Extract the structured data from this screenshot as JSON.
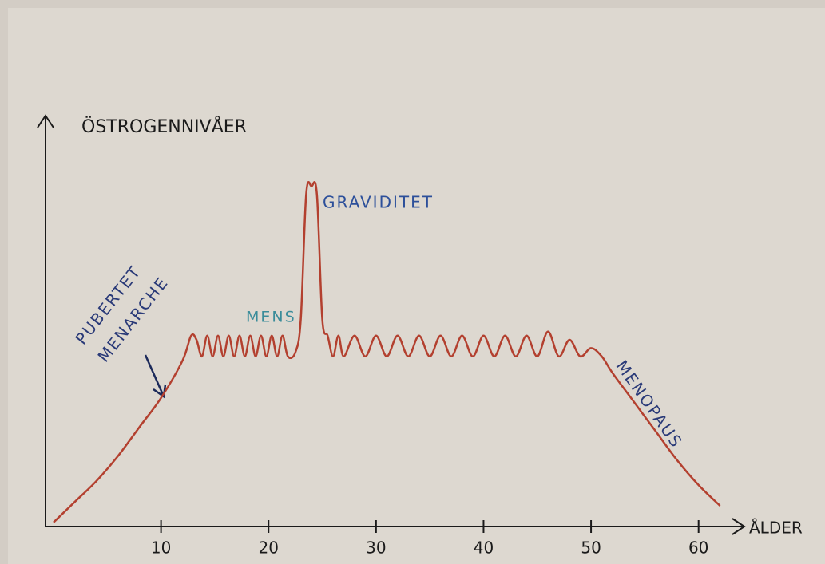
{
  "chart_data": {
    "type": "line",
    "y_label": "ÖSTROGENNIVÅER",
    "x_label": "ÅLDER",
    "annotations": [
      "PUBERTET",
      "MENARCHE",
      "MENS",
      "GRAVIDITET",
      "MENOPAUS"
    ],
    "xlim": [
      0,
      65
    ],
    "ylim": [
      0,
      100
    ],
    "xticks": [
      10,
      20,
      30,
      40,
      50,
      60
    ],
    "series": [
      {
        "color": "#b3402f",
        "x": [
          0,
          2,
          4,
          6,
          8,
          10,
          12,
          12.8,
          13.3,
          13.8,
          14.3,
          14.8,
          15.3,
          15.8,
          16.3,
          16.8,
          17.3,
          17.8,
          18.3,
          18.8,
          19.3,
          19.8,
          20.3,
          20.8,
          21.3,
          21.8,
          22.5,
          23,
          23.5,
          24,
          24.5,
          25,
          25.5,
          26,
          26.5,
          27,
          28,
          29,
          30,
          31,
          32,
          33,
          34,
          35,
          36,
          37,
          38,
          39,
          40,
          41,
          42,
          43,
          44,
          45,
          46,
          47,
          48,
          49,
          50,
          51,
          52,
          54,
          56,
          58,
          60,
          62
        ],
        "values": [
          1,
          6,
          11,
          17,
          24,
          31,
          40,
          46,
          45,
          41,
          46,
          41,
          46,
          41,
          46,
          41,
          46,
          41,
          46,
          41,
          46,
          41,
          46,
          41,
          46,
          41,
          42,
          50,
          80,
          82,
          80,
          50,
          46,
          41,
          46,
          41,
          46,
          41,
          46,
          41,
          46,
          41,
          46,
          41,
          46,
          41,
          46,
          41,
          46,
          41,
          46,
          41,
          46,
          41,
          47,
          41,
          45,
          41,
          43,
          41,
          37,
          30,
          23,
          16,
          10,
          5
        ]
      }
    ]
  }
}
